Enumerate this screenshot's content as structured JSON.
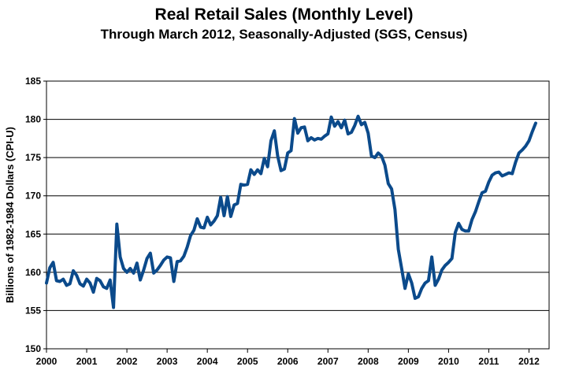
{
  "chart_data": {
    "type": "line",
    "title": "Real Retail Sales (Monthly Level)",
    "subtitle": "Through March 2012, Seasonally-Adjusted (SGS, Census)",
    "ylabel": "Billions of 1982-1984 Dollars (CPI-U)",
    "xlabel": "",
    "ylim": [
      150,
      185
    ],
    "yticks": [
      150,
      155,
      160,
      165,
      170,
      175,
      180,
      185
    ],
    "xlim": [
      2000,
      2012.5
    ],
    "xticks": [
      2000,
      2001,
      2002,
      2003,
      2004,
      2005,
      2006,
      2007,
      2008,
      2009,
      2010,
      2011,
      2012
    ],
    "xtick_labels": [
      "2000",
      "2001",
      "2002",
      "2003",
      "2004",
      "2005",
      "2006",
      "2007",
      "2008",
      "2009",
      "2010",
      "2011",
      "2012"
    ],
    "grid": {
      "horizontal": true,
      "vertical": false
    },
    "legend": "none",
    "line_color": "#0B4A8B",
    "series": [
      {
        "x": [
          2000.0,
          2000.083,
          2000.167,
          2000.25,
          2000.333,
          2000.417,
          2000.5,
          2000.583,
          2000.667,
          2000.75,
          2000.833,
          2000.917,
          2001.0,
          2001.083,
          2001.167,
          2001.25,
          2001.333,
          2001.417,
          2001.5,
          2001.583,
          2001.667,
          2001.75,
          2001.833,
          2001.917,
          2002.0,
          2002.083,
          2002.167,
          2002.25,
          2002.333,
          2002.417,
          2002.5,
          2002.583,
          2002.667,
          2002.75,
          2002.833,
          2002.917,
          2003.0,
          2003.083,
          2003.167,
          2003.25,
          2003.333,
          2003.417,
          2003.5,
          2003.583,
          2003.667,
          2003.75,
          2003.833,
          2003.917,
          2004.0,
          2004.083,
          2004.167,
          2004.25,
          2004.333,
          2004.417,
          2004.5,
          2004.583,
          2004.667,
          2004.75,
          2004.833,
          2004.917,
          2005.0,
          2005.083,
          2005.167,
          2005.25,
          2005.333,
          2005.417,
          2005.5,
          2005.583,
          2005.667,
          2005.75,
          2005.833,
          2005.917,
          2006.0,
          2006.083,
          2006.167,
          2006.25,
          2006.333,
          2006.417,
          2006.5,
          2006.583,
          2006.667,
          2006.75,
          2006.833,
          2006.917,
          2007.0,
          2007.083,
          2007.167,
          2007.25,
          2007.333,
          2007.417,
          2007.5,
          2007.583,
          2007.667,
          2007.75,
          2007.833,
          2007.917,
          2008.0,
          2008.083,
          2008.167,
          2008.25,
          2008.333,
          2008.417,
          2008.5,
          2008.583,
          2008.667,
          2008.75,
          2008.833,
          2008.917,
          2009.0,
          2009.083,
          2009.167,
          2009.25,
          2009.333,
          2009.417,
          2009.5,
          2009.583,
          2009.667,
          2009.75,
          2009.833,
          2009.917,
          2010.0,
          2010.083,
          2010.167,
          2010.25,
          2010.333,
          2010.417,
          2010.5,
          2010.583,
          2010.667,
          2010.75,
          2010.833,
          2010.917,
          2011.0,
          2011.083,
          2011.167,
          2011.25,
          2011.333,
          2011.417,
          2011.5,
          2011.583,
          2011.667,
          2011.75,
          2011.833,
          2011.917,
          2012.0,
          2012.083,
          2012.167
        ],
        "values": [
          158.6,
          160.6,
          161.3,
          158.9,
          158.8,
          159.1,
          158.3,
          158.5,
          160.2,
          159.6,
          158.5,
          158.2,
          159.1,
          158.6,
          157.4,
          159.2,
          158.9,
          158.1,
          157.9,
          159.0,
          155.4,
          166.3,
          162.0,
          160.5,
          160.0,
          160.5,
          159.9,
          161.2,
          159.0,
          160.3,
          161.8,
          162.5,
          159.9,
          160.3,
          160.9,
          161.6,
          162.0,
          161.9,
          158.8,
          161.4,
          161.5,
          162.1,
          163.3,
          164.8,
          165.5,
          167.0,
          165.9,
          165.8,
          167.2,
          166.2,
          166.7,
          167.4,
          169.8,
          167.4,
          169.9,
          167.3,
          168.8,
          169.0,
          171.5,
          171.4,
          171.5,
          173.4,
          172.8,
          173.4,
          172.9,
          174.9,
          173.8,
          177.2,
          178.5,
          175.2,
          173.3,
          173.5,
          175.6,
          175.9,
          180.1,
          178.2,
          178.9,
          179.0,
          177.2,
          177.6,
          177.3,
          177.5,
          177.4,
          177.8,
          178.1,
          180.3,
          179.1,
          179.7,
          178.9,
          179.9,
          178.1,
          178.3,
          179.2,
          180.4,
          179.3,
          179.6,
          178.2,
          175.2,
          175.0,
          175.6,
          175.2,
          174.0,
          171.6,
          170.9,
          168.2,
          163.0,
          160.5,
          157.9,
          159.8,
          158.6,
          156.6,
          156.8,
          157.9,
          158.6,
          158.9,
          162.0,
          158.3,
          159.1,
          160.3,
          160.9,
          161.3,
          161.8,
          165.2,
          166.4,
          165.6,
          165.4,
          165.4,
          166.9,
          167.9,
          169.2,
          170.4,
          170.6,
          171.8,
          172.7,
          173.0,
          173.1,
          172.6,
          172.8,
          173.0,
          172.9,
          174.4,
          175.6,
          176.0,
          176.5,
          177.2,
          178.4,
          179.5
        ]
      }
    ]
  }
}
